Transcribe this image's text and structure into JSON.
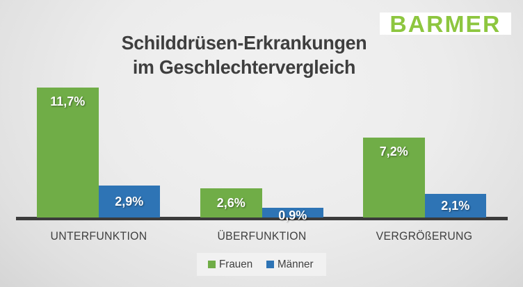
{
  "brand": {
    "logo_text": "BARMER",
    "logo_color": "#8DC63F",
    "logo_bg": "#FFFFFF"
  },
  "title": {
    "line1": "Schilddrüsen-Erkrankungen",
    "line2": "im Geschlechtervergleich"
  },
  "chart_data": {
    "type": "bar",
    "title": "Schilddrüsen-Erkrankungen im Geschlechtervergleich",
    "categories": [
      "UNTERFUNKTION",
      "ÜBERFUNKTION",
      "VERGRÖßERUNG"
    ],
    "series": [
      {
        "name": "Frauen",
        "color": "#70AD47",
        "values": [
          11.7,
          2.6,
          7.2
        ],
        "value_labels": [
          "11,7%",
          "2,6%",
          "7,2%"
        ]
      },
      {
        "name": "Männer",
        "color": "#2E74B5",
        "values": [
          2.9,
          0.9,
          2.1
        ],
        "value_labels": [
          "2,9%",
          "0,9%",
          "2,1%"
        ]
      }
    ],
    "unit": "%",
    "ylim": [
      0,
      12.5
    ],
    "grid": false,
    "legend_position": "bottom",
    "axis_color": "#3B3B3B",
    "label_color": "#3F3F3F",
    "value_label_color": "#FFFFFF"
  }
}
